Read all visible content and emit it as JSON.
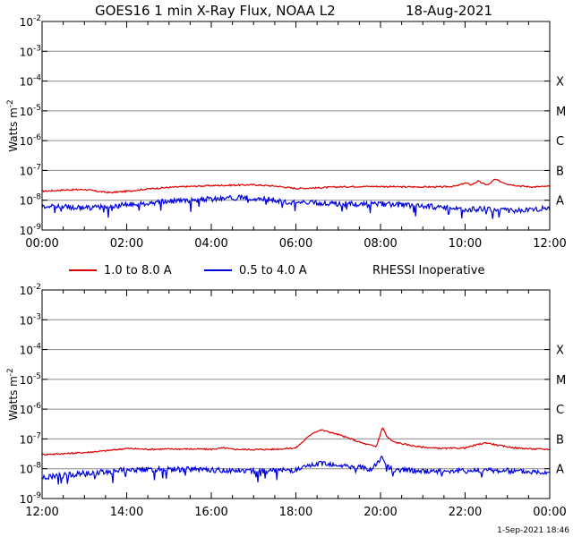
{
  "page": {
    "title": "GOES16  1 min X-Ray Flux, NOAA L2",
    "date": "18-Aug-2021",
    "footer_timestamp": "1-Sep-2021 18:46"
  },
  "legend": {
    "items": [
      {
        "label": "1.0 to 8.0 A",
        "color": "#dd0000"
      },
      {
        "label": "0.5 to 4.0 A",
        "color": "#0000dd"
      }
    ],
    "note": "RHESSI Inoperative"
  },
  "chart_data": [
    {
      "type": "line",
      "ylabel": "Watts m",
      "ylabel_superscript": "-2",
      "y_scale": "log",
      "ylim": [
        1e-09,
        0.01
      ],
      "y_tick_labels": [
        {
          "base": "10",
          "exp": "-2"
        },
        {
          "base": "10",
          "exp": "-3"
        },
        {
          "base": "10",
          "exp": "-4"
        },
        {
          "base": "10",
          "exp": "-5"
        },
        {
          "base": "10",
          "exp": "-6"
        },
        {
          "base": "10",
          "exp": "-7"
        },
        {
          "base": "10",
          "exp": "-8"
        },
        {
          "base": "10",
          "exp": "-9"
        }
      ],
      "flare_class_labels": [
        "X",
        "M",
        "C",
        "B",
        "A"
      ],
      "x_tick_labels": [
        "00:00",
        "02:00",
        "04:00",
        "06:00",
        "08:00",
        "10:00",
        "12:00"
      ],
      "xlim_hours": [
        0,
        12
      ],
      "grid": true,
      "series": [
        {
          "name": "1.0 to 8.0 A",
          "color": "#dd0000",
          "x_hours": [
            0,
            0.5,
            1,
            1.3,
            1.6,
            2,
            2.5,
            3,
            3.5,
            4,
            4.5,
            5,
            5.5,
            6,
            6.5,
            7,
            7.5,
            8,
            8.5,
            9,
            9.5,
            9.8,
            10.0,
            10.15,
            10.3,
            10.45,
            10.55,
            10.7,
            10.85,
            11.0,
            11.3,
            11.6,
            12
          ],
          "values": [
            2e-08,
            2.2e-08,
            2.3e-08,
            2e-08,
            1.8e-08,
            2e-08,
            2.4e-08,
            2.7e-08,
            2.9e-08,
            3.1e-08,
            3.2e-08,
            3.3e-08,
            3e-08,
            2.5e-08,
            2.6e-08,
            2.8e-08,
            2.9e-08,
            2.9e-08,
            2.8e-08,
            2.8e-08,
            2.8e-08,
            3e-08,
            3.8e-08,
            3.3e-08,
            4.4e-08,
            3.5e-08,
            3.3e-08,
            5e-08,
            4.2e-08,
            3.5e-08,
            3e-08,
            2.8e-08,
            2.9e-08
          ]
        },
        {
          "name": "0.5 to 4.0 A",
          "color": "#0000dd",
          "x_hours": [
            0,
            0.5,
            1,
            1.5,
            2,
            2.5,
            3,
            3.5,
            4,
            4.5,
            5,
            5.5,
            6,
            6.5,
            7,
            7.5,
            8,
            8.5,
            9,
            9.5,
            10,
            10.5,
            11,
            11.5,
            12
          ],
          "values": [
            6.5e-09,
            6e-09,
            5.5e-09,
            6e-09,
            7e-09,
            8e-09,
            9e-09,
            1e-08,
            1.1e-08,
            1.2e-08,
            1.2e-08,
            1e-08,
            8e-09,
            8e-09,
            7.5e-09,
            7.5e-09,
            7.5e-09,
            7e-09,
            6.5e-09,
            5.5e-09,
            5e-09,
            5e-09,
            4.5e-09,
            4.5e-09,
            5.5e-09
          ]
        }
      ]
    },
    {
      "type": "line",
      "ylabel": "Watts m",
      "ylabel_superscript": "-2",
      "y_scale": "log",
      "ylim": [
        1e-09,
        0.01
      ],
      "y_tick_labels": [
        {
          "base": "10",
          "exp": "-2"
        },
        {
          "base": "10",
          "exp": "-3"
        },
        {
          "base": "10",
          "exp": "-4"
        },
        {
          "base": "10",
          "exp": "-5"
        },
        {
          "base": "10",
          "exp": "-6"
        },
        {
          "base": "10",
          "exp": "-7"
        },
        {
          "base": "10",
          "exp": "-8"
        },
        {
          "base": "10",
          "exp": "-9"
        }
      ],
      "flare_class_labels": [
        "X",
        "M",
        "C",
        "B",
        "A"
      ],
      "x_tick_labels": [
        "12:00",
        "14:00",
        "16:00",
        "18:00",
        "20:00",
        "22:00",
        "00:00"
      ],
      "xlim_hours": [
        12,
        24
      ],
      "grid": true,
      "series": [
        {
          "name": "1.0 to 8.0 A",
          "color": "#dd0000",
          "x_hours": [
            12,
            12.5,
            13,
            13.5,
            14,
            14.5,
            15,
            15.5,
            16,
            16.3,
            16.5,
            17,
            17.5,
            18,
            18.2,
            18.4,
            18.6,
            18.8,
            19,
            19.3,
            19.6,
            19.9,
            20.05,
            20.15,
            20.3,
            20.6,
            20.9,
            21.2,
            21.5,
            22,
            22.3,
            22.5,
            22.8,
            23.2,
            23.6,
            24
          ],
          "values": [
            3e-08,
            3.2e-08,
            3.5e-08,
            4e-08,
            4.8e-08,
            4.5e-08,
            4.6e-08,
            4.6e-08,
            4.5e-08,
            5e-08,
            4.5e-08,
            4.4e-08,
            4.5e-08,
            5e-08,
            9e-08,
            1.6e-07,
            2e-07,
            1.7e-07,
            1.4e-07,
            1e-07,
            7e-08,
            5.5e-08,
            2.5e-07,
            1.2e-07,
            8e-08,
            6.5e-08,
            5.5e-08,
            5e-08,
            4.8e-08,
            5e-08,
            6.5e-08,
            7.5e-08,
            6e-08,
            5e-08,
            4.6e-08,
            4.5e-08
          ]
        },
        {
          "name": "0.5 to 4.0 A",
          "color": "#0000dd",
          "x_hours": [
            12,
            12.5,
            13,
            13.5,
            14,
            14.5,
            15,
            15.5,
            16,
            16.5,
            17,
            17.5,
            18,
            18.3,
            18.6,
            18.9,
            19.2,
            19.5,
            19.8,
            20.05,
            20.15,
            20.3,
            20.6,
            21,
            21.5,
            22,
            22.5,
            23,
            23.5,
            24
          ],
          "values": [
            5e-09,
            6e-09,
            7e-09,
            8e-09,
            9e-09,
            9.5e-09,
            9.5e-09,
            9.5e-09,
            9e-09,
            9e-09,
            8.5e-09,
            8.5e-09,
            9e-09,
            1.2e-08,
            1.6e-08,
            1.4e-08,
            1.2e-08,
            1.1e-08,
            1e-08,
            2.5e-08,
            1.2e-08,
            9.5e-09,
            9e-09,
            8.5e-09,
            8.5e-09,
            8.5e-09,
            9e-09,
            8.5e-09,
            8e-09,
            8e-09
          ]
        }
      ]
    }
  ]
}
